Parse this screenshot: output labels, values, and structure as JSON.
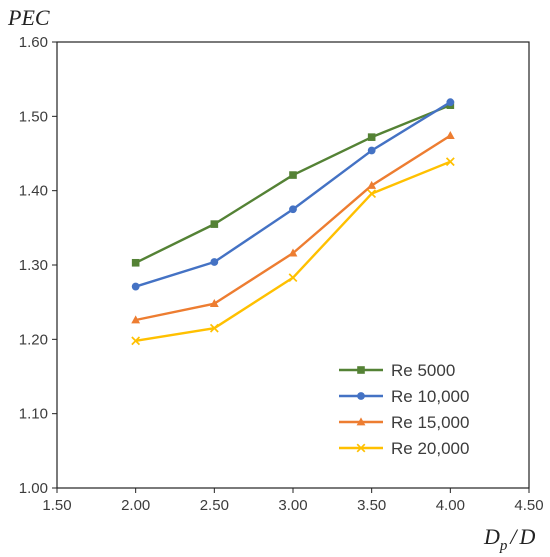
{
  "chart_data": {
    "type": "line",
    "ylabel": "PEC",
    "xlabel_main": "D",
    "xlabel_sub": "p",
    "xlabel_sep": "/",
    "xlabel_tail": "D",
    "x": [
      2.0,
      2.5,
      3.0,
      3.5,
      4.0
    ],
    "xlim": [
      1.5,
      4.5
    ],
    "ylim": [
      1.0,
      1.6
    ],
    "x_ticks": [
      1.5,
      2.0,
      2.5,
      3.0,
      3.5,
      4.0,
      4.5
    ],
    "x_tick_labels": [
      "1.50",
      "2.00",
      "2.50",
      "3.00",
      "3.50",
      "4.00",
      "4.50"
    ],
    "y_ticks": [
      1.0,
      1.1,
      1.2,
      1.3,
      1.4,
      1.5,
      1.6
    ],
    "y_tick_labels": [
      "1.00",
      "1.10",
      "1.20",
      "1.30",
      "1.40",
      "1.50",
      "1.60"
    ],
    "grid": false,
    "legend_position": "lower-right",
    "series": [
      {
        "name": "Re 5000",
        "color": "#548235",
        "marker": "square",
        "values": [
          1.303,
          1.355,
          1.421,
          1.472,
          1.515
        ]
      },
      {
        "name": "Re 10,000",
        "color": "#4472c4",
        "marker": "circle",
        "values": [
          1.271,
          1.304,
          1.375,
          1.454,
          1.519
        ]
      },
      {
        "name": "Re 15,000",
        "color": "#ed7d31",
        "marker": "triangle",
        "values": [
          1.226,
          1.248,
          1.316,
          1.407,
          1.474
        ]
      },
      {
        "name": "Re 20,000",
        "color": "#ffc000",
        "marker": "x",
        "values": [
          1.198,
          1.215,
          1.283,
          1.396,
          1.439
        ]
      }
    ]
  }
}
